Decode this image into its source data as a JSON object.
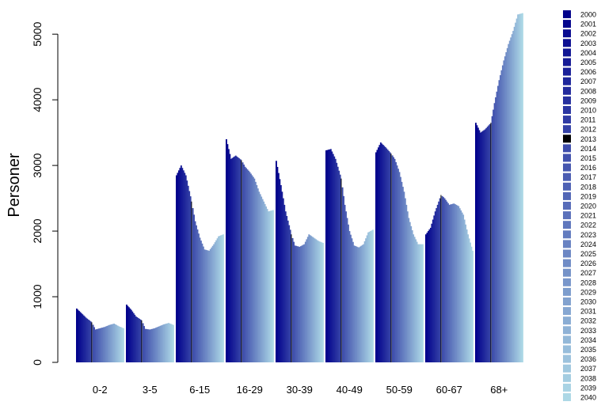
{
  "chart_data": {
    "type": "bar",
    "title": "",
    "xlabel": "",
    "ylabel": "Personer",
    "ylim": [
      0,
      5400
    ],
    "y_ticks": [
      0,
      1000,
      2000,
      3000,
      4000,
      5000
    ],
    "y_tick_labels": [
      "0",
      "1000",
      "2000",
      "3000",
      "4000",
      "5000"
    ],
    "grid": false,
    "legend_position": "right",
    "highlight_year": "2013",
    "highlight_color": "#000000",
    "color_start": "#00008b",
    "color_end": "#add8e6",
    "categories": [
      "0-2",
      "3-5",
      "6-15",
      "16-29",
      "30-39",
      "40-49",
      "50-59",
      "60-67",
      "68+"
    ],
    "legend_years": [
      "2000",
      "2001",
      "2002",
      "2003",
      "2004",
      "2005",
      "2006",
      "2007",
      "2008",
      "2009",
      "2010",
      "2011",
      "2012",
      "2013",
      "2014",
      "2015",
      "2016",
      "2017",
      "2018",
      "2019",
      "2020",
      "2021",
      "2022",
      "2023",
      "2024",
      "2025",
      "2026",
      "2027",
      "2028",
      "2029",
      "2030",
      "2031",
      "2032",
      "2033",
      "2034",
      "2035",
      "2036",
      "2037",
      "2038",
      "2039",
      "2040"
    ],
    "series_key_years": [
      2000,
      2004,
      2008,
      2013,
      2016,
      2020,
      2024,
      2028,
      2032,
      2036,
      2040
    ],
    "groups": [
      {
        "category": "0-2",
        "key_values": [
          820,
          750,
          680,
          610,
          500,
          520,
          540,
          570,
          590,
          550,
          520
        ]
      },
      {
        "category": "3-5",
        "key_values": [
          880,
          800,
          700,
          640,
          510,
          500,
          520,
          550,
          580,
          600,
          570
        ]
      },
      {
        "category": "6-15",
        "key_values": [
          2850,
          3000,
          2850,
          2450,
          2150,
          1900,
          1720,
          1700,
          1800,
          1920,
          1950
        ]
      },
      {
        "category": "16-29",
        "key_values": [
          3400,
          3100,
          3150,
          3080,
          2980,
          2900,
          2800,
          2600,
          2450,
          2300,
          2320
        ]
      },
      {
        "category": "30-39",
        "key_values": [
          3070,
          2700,
          2300,
          1950,
          1780,
          1760,
          1800,
          1950,
          1900,
          1850,
          1820
        ]
      },
      {
        "category": "40-49",
        "key_values": [
          3230,
          3250,
          3100,
          2800,
          2400,
          2000,
          1780,
          1750,
          1800,
          1980,
          2020
        ]
      },
      {
        "category": "50-59",
        "key_values": [
          3200,
          3350,
          3280,
          3180,
          3100,
          2900,
          2600,
          2200,
          1950,
          1800,
          1800
        ]
      },
      {
        "category": "60-67",
        "key_values": [
          1950,
          2050,
          2300,
          2550,
          2500,
          2400,
          2420,
          2380,
          2250,
          1950,
          1700
        ]
      },
      {
        "category": "68+",
        "key_values": [
          3650,
          3500,
          3550,
          3650,
          3950,
          4300,
          4600,
          4850,
          5050,
          5300,
          5320
        ]
      }
    ]
  }
}
